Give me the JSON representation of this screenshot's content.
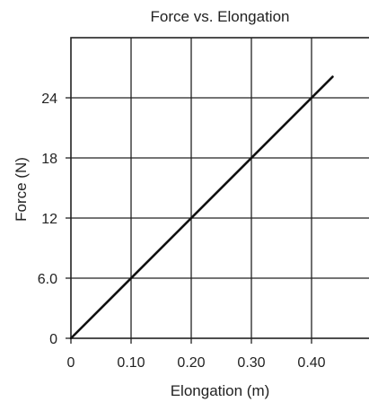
{
  "chart_data": {
    "type": "line",
    "title": "Force vs. Elongation",
    "xlabel": "Elongation (m)",
    "ylabel": "Force (N)",
    "xlim": [
      0,
      0.5
    ],
    "ylim": [
      0,
      30
    ],
    "x_ticks": [
      0,
      0.1,
      0.2,
      0.3,
      0.4
    ],
    "x_tick_labels": [
      "0",
      "0.10",
      "0.20",
      "0.30",
      "0.40"
    ],
    "y_ticks": [
      0,
      6,
      12,
      18,
      24
    ],
    "y_tick_labels": [
      "0",
      "6.0",
      "12",
      "18",
      "24"
    ],
    "grid": true,
    "series": [
      {
        "x": [
          0,
          0.435
        ],
        "y": [
          0,
          26.1
        ],
        "color": "#111111"
      }
    ]
  }
}
